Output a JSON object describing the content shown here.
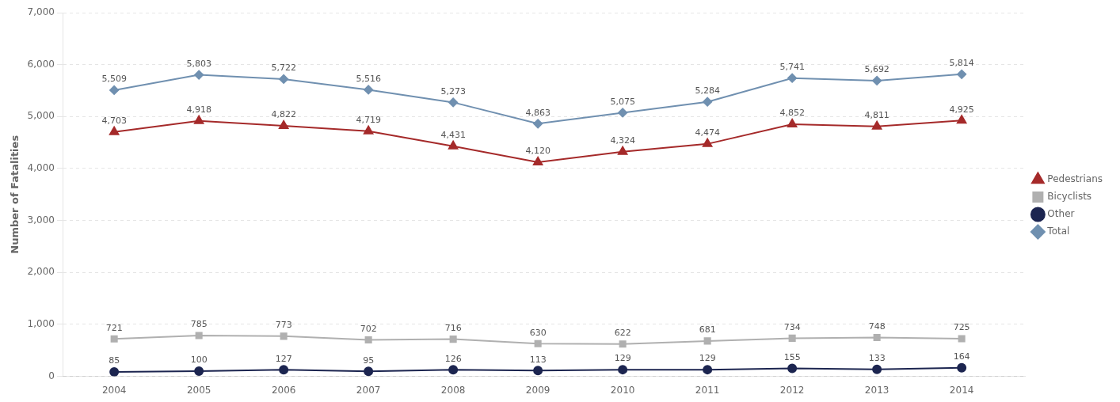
{
  "chart_data": {
    "type": "line",
    "y_label": "Number of Fatalities",
    "x": [
      2004,
      2005,
      2006,
      2007,
      2008,
      2009,
      2010,
      2011,
      2012,
      2013,
      2014
    ],
    "xlim": [
      2003.4,
      2014.75
    ],
    "xticks": [
      2004,
      2005,
      2006,
      2007,
      2008,
      2009,
      2010,
      2011,
      2012,
      2013,
      2014
    ],
    "ylim": [
      0,
      7000
    ],
    "yticks": [
      0,
      {
        "value": 1000,
        "label": "1,000"
      },
      {
        "value": 2000,
        "label": "2,000"
      },
      {
        "value": 3000,
        "label": "3,000"
      },
      {
        "value": 4000,
        "label": "4,000"
      },
      {
        "value": 5000,
        "label": "5,000"
      },
      {
        "value": 6000,
        "label": "6,000"
      },
      {
        "value": 7000,
        "label": "7,000"
      }
    ],
    "grid": "y",
    "legend": "right",
    "data_labels": true,
    "series": [
      {
        "name": "Pedestrians",
        "color": "#a52a2a",
        "marker": "triangle",
        "values": [
          4703,
          4918,
          4822,
          4719,
          4431,
          4120,
          4324,
          4474,
          4852,
          4811,
          4925
        ],
        "value_labels": [
          "4,703",
          "4,918",
          "4,822",
          "4,719",
          "4,431",
          "4,120",
          "4,324",
          "4,474",
          "4,852",
          "4,811",
          "4,925"
        ]
      },
      {
        "name": "Bicyclists",
        "color": "#b0b0b0",
        "marker": "square",
        "values": [
          721,
          785,
          773,
          702,
          716,
          630,
          622,
          681,
          734,
          748,
          725
        ]
      },
      {
        "name": "Other",
        "color": "#1c2550",
        "marker": "circle",
        "values": [
          85,
          100,
          127,
          95,
          126,
          113,
          129,
          129,
          155,
          133,
          164
        ]
      },
      {
        "name": "Total",
        "color": "#7090b0",
        "marker": "diamond",
        "values": [
          5509,
          5803,
          5722,
          5516,
          5273,
          4863,
          5075,
          5284,
          5741,
          5692,
          5814
        ],
        "value_labels": [
          "5,509",
          "5,803",
          "5,722",
          "5,516",
          "5,273",
          "4,863",
          "5,075",
          "5,284",
          "5,741",
          "5,692",
          "5,814"
        ]
      }
    ]
  }
}
